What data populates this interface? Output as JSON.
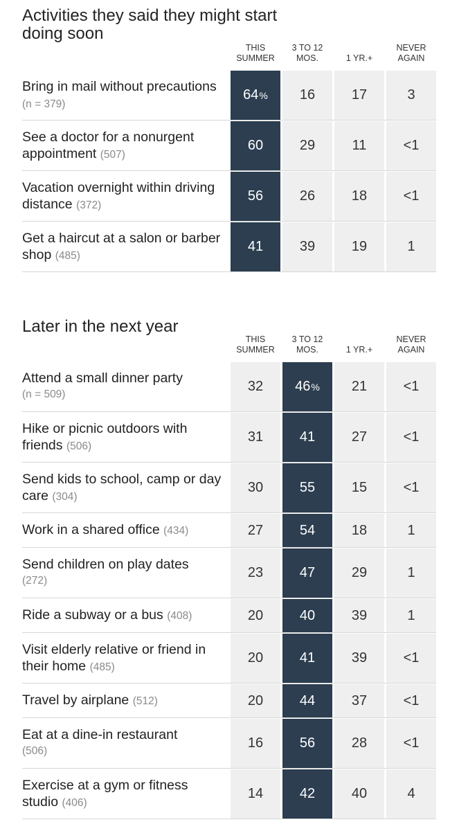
{
  "chart_data": [
    {
      "type": "table",
      "title": "Activities they said they might start doing soon",
      "columns": [
        {
          "line1": "THIS",
          "line2": "SUMMER"
        },
        {
          "line1": "3 TO 12",
          "line2": "MOS."
        },
        {
          "line1": "",
          "line2": "1 YR.+"
        },
        {
          "line1": "NEVER",
          "line2": "AGAIN"
        }
      ],
      "highlight_column": 0,
      "rows": [
        {
          "label": "Bring in mail without precautions",
          "n": "(n = 379)",
          "n_newline": false,
          "values": [
            "64",
            "16",
            "17",
            "3"
          ],
          "first_unit": "%"
        },
        {
          "label": "See a doctor for a nonurgent appointment",
          "n": "(507)",
          "n_newline": false,
          "values": [
            "60",
            "29",
            "11",
            "<1"
          ],
          "first_unit": ""
        },
        {
          "label": "Vacation overnight within driving distance",
          "n": "(372)",
          "n_newline": false,
          "values": [
            "56",
            "26",
            "18",
            "<1"
          ],
          "first_unit": ""
        },
        {
          "label": "Get a haircut at a salon or barber shop",
          "n": "(485)",
          "n_newline": false,
          "values": [
            "41",
            "39",
            "19",
            "1"
          ],
          "first_unit": ""
        }
      ]
    },
    {
      "type": "table",
      "title": "Later in the next year",
      "columns": [
        {
          "line1": "THIS",
          "line2": "SUMMER"
        },
        {
          "line1": "3 TO 12",
          "line2": "MOS."
        },
        {
          "line1": "",
          "line2": "1 YR.+"
        },
        {
          "line1": "NEVER",
          "line2": "AGAIN"
        }
      ],
      "highlight_column": 1,
      "rows": [
        {
          "label": "Attend a small dinner party",
          "n": "(n = 509)",
          "n_newline": true,
          "values": [
            "32",
            "46",
            "21",
            "<1"
          ],
          "first_unit": "%"
        },
        {
          "label": "Hike or picnic outdoors with friends",
          "n": "(506)",
          "n_newline": false,
          "values": [
            "31",
            "41",
            "27",
            "<1"
          ],
          "first_unit": ""
        },
        {
          "label": "Send kids to school, camp or day care",
          "n": "(304)",
          "n_newline": false,
          "values": [
            "30",
            "55",
            "15",
            "<1"
          ],
          "first_unit": ""
        },
        {
          "label": "Work in a shared office",
          "n": "(434)",
          "n_newline": false,
          "values": [
            "27",
            "54",
            "18",
            "1"
          ],
          "first_unit": ""
        },
        {
          "label": "Send children on play dates",
          "n": "(272)",
          "n_newline": true,
          "values": [
            "23",
            "47",
            "29",
            "1"
          ],
          "first_unit": ""
        },
        {
          "label": "Ride a subway or a bus",
          "n": "(408)",
          "n_newline": false,
          "values": [
            "20",
            "40",
            "39",
            "1"
          ],
          "first_unit": ""
        },
        {
          "label": "Visit elderly relative or friend in their home",
          "n": "(485)",
          "n_newline": false,
          "values": [
            "20",
            "41",
            "39",
            "<1"
          ],
          "first_unit": ""
        },
        {
          "label": "Travel by airplane",
          "n": "(512)",
          "n_newline": false,
          "values": [
            "20",
            "44",
            "37",
            "<1"
          ],
          "first_unit": ""
        },
        {
          "label": "Eat at a dine-in restaurant",
          "n": "(506)",
          "n_newline": true,
          "values": [
            "16",
            "56",
            "28",
            "<1"
          ],
          "first_unit": ""
        },
        {
          "label": "Exercise at a gym or fitness studio",
          "n": "(406)",
          "n_newline": false,
          "values": [
            "14",
            "42",
            "40",
            "4"
          ],
          "first_unit": ""
        }
      ]
    }
  ],
  "colors": {
    "highlight": "#2c3e50",
    "cell": "#efefef",
    "text": "#222222",
    "muted": "#8a8a8a",
    "rule": "#d6d6d6"
  }
}
